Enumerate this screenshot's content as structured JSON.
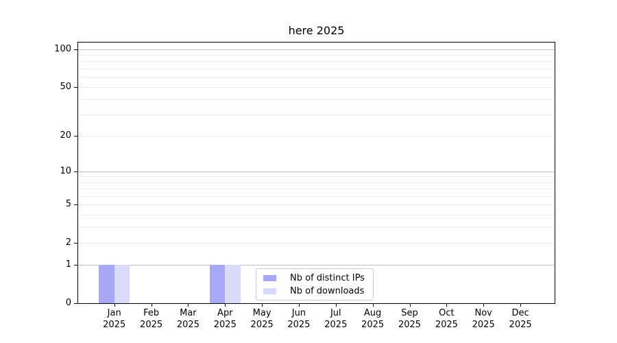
{
  "chart_data": {
    "type": "bar",
    "title": "here 2025",
    "categories": [
      {
        "month": "Jan",
        "year": "2025"
      },
      {
        "month": "Feb",
        "year": "2025"
      },
      {
        "month": "Mar",
        "year": "2025"
      },
      {
        "month": "Apr",
        "year": "2025"
      },
      {
        "month": "May",
        "year": "2025"
      },
      {
        "month": "Jun",
        "year": "2025"
      },
      {
        "month": "Jul",
        "year": "2025"
      },
      {
        "month": "Aug",
        "year": "2025"
      },
      {
        "month": "Sep",
        "year": "2025"
      },
      {
        "month": "Oct",
        "year": "2025"
      },
      {
        "month": "Nov",
        "year": "2025"
      },
      {
        "month": "Dec",
        "year": "2025"
      }
    ],
    "series": [
      {
        "name": "Nb of distinct IPs",
        "color": "#a7a7f4",
        "values": [
          1,
          0,
          0,
          1,
          0,
          0,
          0,
          0,
          0,
          0,
          0,
          0
        ]
      },
      {
        "name": "Nb of downloads",
        "color": "#dadafa",
        "values": [
          1,
          0,
          0,
          1,
          0,
          0,
          0,
          0,
          0,
          0,
          0,
          0
        ]
      }
    ],
    "yscale": "log1p",
    "ylim": [
      0,
      113
    ],
    "yticks": [
      0,
      1,
      2,
      5,
      10,
      20,
      50,
      100
    ],
    "gridlines_major": [
      1,
      10,
      100
    ],
    "gridlines_minor": [
      2,
      3,
      4,
      5,
      6,
      7,
      8,
      9,
      20,
      30,
      40,
      50,
      60,
      70,
      80,
      90
    ],
    "legend_position": "lower center",
    "colors": {
      "grid_major": "#c2c2c2",
      "grid_minor": "#ececec",
      "spine": "#000000"
    }
  }
}
